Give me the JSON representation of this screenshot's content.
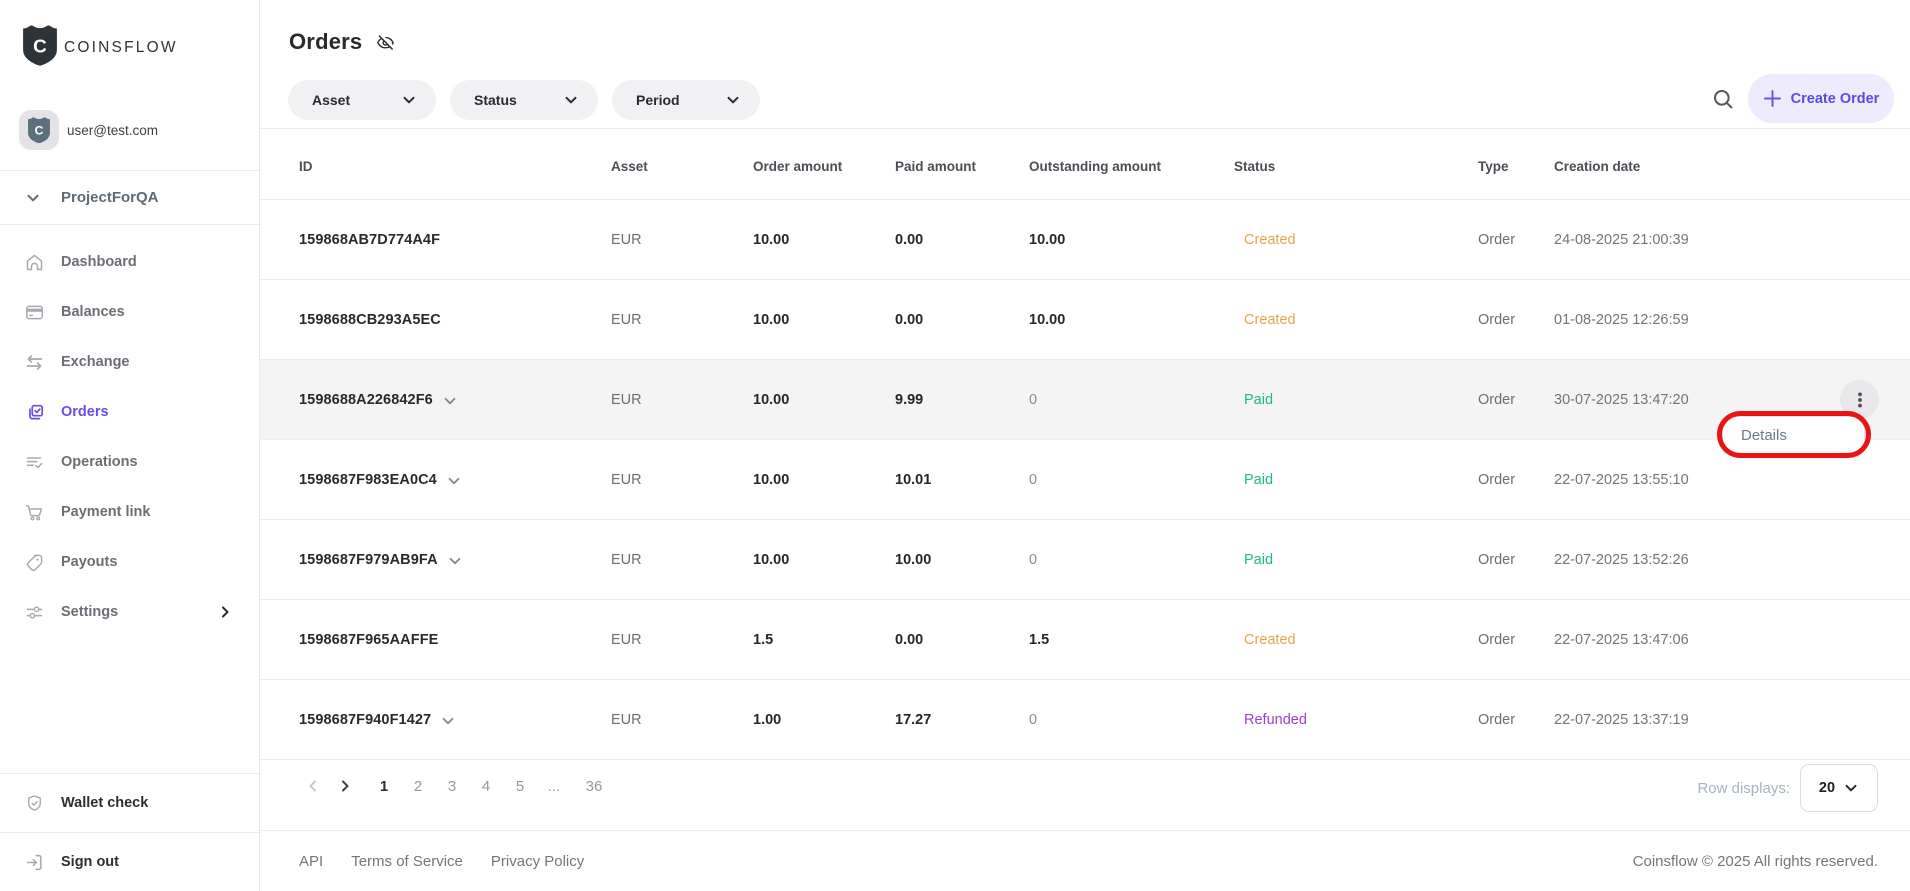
{
  "brand": {
    "name": "COINSFLOW",
    "logo_letter": "C"
  },
  "user": {
    "email": "user@test.com"
  },
  "project": {
    "name": "ProjectForQA"
  },
  "sidebar": {
    "items": [
      {
        "label": "Dashboard",
        "icon": "home-icon",
        "active": false,
        "chevron": false
      },
      {
        "label": "Balances",
        "icon": "card-icon",
        "active": false,
        "chevron": false
      },
      {
        "label": "Exchange",
        "icon": "exchange-icon",
        "active": false,
        "chevron": false
      },
      {
        "label": "Orders",
        "icon": "orders-icon",
        "active": true,
        "chevron": false
      },
      {
        "label": "Operations",
        "icon": "list-check-icon",
        "active": false,
        "chevron": false
      },
      {
        "label": "Payment link",
        "icon": "cart-icon",
        "active": false,
        "chevron": false
      },
      {
        "label": "Payouts",
        "icon": "tag-icon",
        "active": false,
        "chevron": false
      },
      {
        "label": "Settings",
        "icon": "sliders-icon",
        "active": false,
        "chevron": true
      }
    ],
    "wallet_check": "Wallet check",
    "sign_out": "Sign out"
  },
  "header": {
    "title": "Orders",
    "filters": [
      {
        "label": "Asset"
      },
      {
        "label": "Status"
      },
      {
        "label": "Period"
      }
    ],
    "create_order_label": "Create Order"
  },
  "table": {
    "columns": [
      "ID",
      "Asset",
      "Order amount",
      "Paid amount",
      "Outstanding amount",
      "Status",
      "Type",
      "Creation date"
    ],
    "status_colors": {
      "Created": "#e2a74e",
      "Paid": "#1bb98d",
      "Refunded": "#9b3fd1"
    },
    "rows": [
      {
        "id": "159868AB7D774A4F",
        "expandable": false,
        "asset": "EUR",
        "order_amount": "10.00",
        "paid_amount": "0.00",
        "outstanding_amount": "10.00",
        "outstanding_muted": false,
        "status": "Created",
        "type": "Order",
        "creation_date": "24-08-2025 21:00:39",
        "highlighted": false,
        "menu_open": false
      },
      {
        "id": "1598688CB293A5EC",
        "expandable": false,
        "asset": "EUR",
        "order_amount": "10.00",
        "paid_amount": "0.00",
        "outstanding_amount": "10.00",
        "outstanding_muted": false,
        "status": "Created",
        "type": "Order",
        "creation_date": "01-08-2025 12:26:59",
        "highlighted": false,
        "menu_open": false
      },
      {
        "id": "1598688A226842F6",
        "expandable": true,
        "asset": "EUR",
        "order_amount": "10.00",
        "paid_amount": "9.99",
        "outstanding_amount": "0",
        "outstanding_muted": true,
        "status": "Paid",
        "type": "Order",
        "creation_date": "30-07-2025 13:47:20",
        "highlighted": true,
        "menu_open": true
      },
      {
        "id": "1598687F983EA0C4",
        "expandable": true,
        "asset": "EUR",
        "order_amount": "10.00",
        "paid_amount": "10.01",
        "outstanding_amount": "0",
        "outstanding_muted": true,
        "status": "Paid",
        "type": "Order",
        "creation_date": "22-07-2025 13:55:10",
        "highlighted": false,
        "menu_open": false
      },
      {
        "id": "1598687F979AB9FA",
        "expandable": true,
        "asset": "EUR",
        "order_amount": "10.00",
        "paid_amount": "10.00",
        "outstanding_amount": "0",
        "outstanding_muted": true,
        "status": "Paid",
        "type": "Order",
        "creation_date": "22-07-2025 13:52:26",
        "highlighted": false,
        "menu_open": false
      },
      {
        "id": "1598687F965AAFFE",
        "expandable": false,
        "asset": "EUR",
        "order_amount": "1.5",
        "paid_amount": "0.00",
        "outstanding_amount": "1.5",
        "outstanding_muted": false,
        "status": "Created",
        "type": "Order",
        "creation_date": "22-07-2025 13:47:06",
        "highlighted": false,
        "menu_open": false
      },
      {
        "id": "1598687F940F1427",
        "expandable": true,
        "asset": "EUR",
        "order_amount": "1.00",
        "paid_amount": "17.27",
        "outstanding_amount": "0",
        "outstanding_muted": true,
        "status": "Refunded",
        "type": "Order",
        "creation_date": "22-07-2025 13:37:19",
        "highlighted": false,
        "menu_open": false
      }
    ]
  },
  "row_menu": {
    "items": [
      "Details"
    ],
    "annotated": true,
    "annotation_color": "#ea1414"
  },
  "pagination": {
    "pages": [
      "1",
      "2",
      "3",
      "4",
      "5",
      "...",
      "36"
    ],
    "current_page": "1",
    "row_displays_label": "Row displays:",
    "rows_per_page": "20"
  },
  "footer": {
    "links": [
      "API",
      "Terms of Service",
      "Privacy Policy"
    ],
    "copyright": "Coinsflow © 2025 All rights reserved."
  },
  "colors": {
    "accent_purple": "#6450e8",
    "create_button_bg": "#edebfc",
    "created_status": "#e2a74e",
    "paid_status": "#1bb98d",
    "refunded_status": "#9b3fd1",
    "annotation_red": "#ea1414",
    "row_highlight": "#f4f4f5"
  }
}
